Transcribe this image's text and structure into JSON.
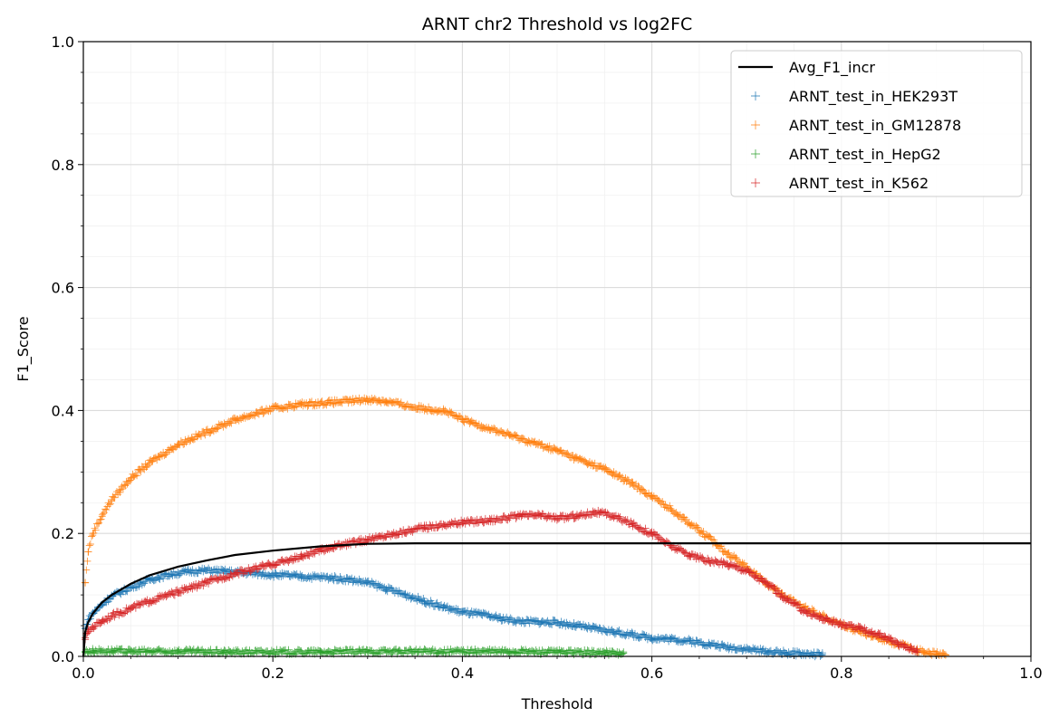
{
  "chart_data": {
    "type": "scatter",
    "title": "ARNT chr2 Threshold vs log2FC",
    "xlabel": "Threshold",
    "ylabel": "F1_Score",
    "xlim": [
      0.0,
      1.0
    ],
    "ylim": [
      0.0,
      1.0
    ],
    "xticks": [
      "0.0",
      "0.2",
      "0.4",
      "0.6",
      "0.8",
      "1.0"
    ],
    "yticks": [
      "0.0",
      "0.2",
      "0.4",
      "0.6",
      "0.8",
      "1.0"
    ],
    "grid": true,
    "minor_grid": true,
    "legend_position": "top-right",
    "series": [
      {
        "name": "Avg_F1_incr",
        "kind": "line",
        "color": "#000000",
        "x": [
          0.0,
          0.002,
          0.005,
          0.01,
          0.02,
          0.03,
          0.05,
          0.07,
          0.1,
          0.13,
          0.16,
          0.2,
          0.25,
          0.3,
          0.35,
          0.4,
          0.5,
          0.6,
          0.8,
          1.0
        ],
        "y": [
          0.0,
          0.04,
          0.055,
          0.07,
          0.088,
          0.1,
          0.118,
          0.132,
          0.146,
          0.156,
          0.165,
          0.172,
          0.179,
          0.183,
          0.184,
          0.184,
          0.184,
          0.184,
          0.184,
          0.184
        ]
      },
      {
        "name": "ARNT_test_in_HEK293T",
        "kind": "scatter",
        "color": "#1f77b4",
        "x": [
          0.002,
          0.005,
          0.01,
          0.02,
          0.03,
          0.05,
          0.07,
          0.09,
          0.11,
          0.13,
          0.15,
          0.17,
          0.2,
          0.23,
          0.26,
          0.28,
          0.3,
          0.32,
          0.34,
          0.36,
          0.38,
          0.4,
          0.42,
          0.44,
          0.46,
          0.48,
          0.5,
          0.52,
          0.54,
          0.56,
          0.58,
          0.6,
          0.62,
          0.64,
          0.66,
          0.68,
          0.7,
          0.72,
          0.74,
          0.76,
          0.78
        ],
        "y": [
          0.045,
          0.06,
          0.07,
          0.085,
          0.098,
          0.112,
          0.125,
          0.133,
          0.138,
          0.14,
          0.138,
          0.136,
          0.133,
          0.13,
          0.128,
          0.125,
          0.12,
          0.11,
          0.1,
          0.09,
          0.08,
          0.072,
          0.068,
          0.062,
          0.057,
          0.056,
          0.055,
          0.05,
          0.045,
          0.04,
          0.035,
          0.03,
          0.028,
          0.025,
          0.02,
          0.015,
          0.012,
          0.008,
          0.006,
          0.004,
          0.003
        ]
      },
      {
        "name": "ARNT_test_in_GM12878",
        "kind": "scatter",
        "color": "#ff7f0e",
        "x": [
          0.002,
          0.005,
          0.01,
          0.02,
          0.03,
          0.05,
          0.07,
          0.1,
          0.13,
          0.16,
          0.2,
          0.23,
          0.26,
          0.28,
          0.3,
          0.32,
          0.35,
          0.38,
          0.4,
          0.42,
          0.45,
          0.48,
          0.5,
          0.52,
          0.55,
          0.58,
          0.6,
          0.62,
          0.65,
          0.68,
          0.7,
          0.72,
          0.74,
          0.76,
          0.78,
          0.8,
          0.82,
          0.84,
          0.86,
          0.88,
          0.9,
          0.91
        ],
        "y": [
          0.12,
          0.17,
          0.2,
          0.23,
          0.255,
          0.29,
          0.315,
          0.345,
          0.365,
          0.385,
          0.403,
          0.41,
          0.413,
          0.415,
          0.418,
          0.415,
          0.405,
          0.4,
          0.385,
          0.375,
          0.36,
          0.345,
          0.335,
          0.322,
          0.305,
          0.28,
          0.26,
          0.24,
          0.205,
          0.168,
          0.145,
          0.12,
          0.098,
          0.08,
          0.066,
          0.052,
          0.04,
          0.03,
          0.02,
          0.01,
          0.004,
          0.002
        ]
      },
      {
        "name": "ARNT_test_in_HepG2",
        "kind": "scatter",
        "color": "#2ca02c",
        "x": [
          0.002,
          0.01,
          0.03,
          0.05,
          0.1,
          0.15,
          0.2,
          0.25,
          0.3,
          0.35,
          0.4,
          0.45,
          0.5,
          0.55,
          0.57
        ],
        "y": [
          0.008,
          0.009,
          0.009,
          0.008,
          0.008,
          0.007,
          0.007,
          0.007,
          0.008,
          0.008,
          0.008,
          0.008,
          0.007,
          0.006,
          0.005
        ]
      },
      {
        "name": "ARNT_test_in_K562",
        "kind": "scatter",
        "color": "#d62728",
        "x": [
          0.002,
          0.005,
          0.01,
          0.02,
          0.03,
          0.05,
          0.07,
          0.1,
          0.13,
          0.16,
          0.2,
          0.23,
          0.26,
          0.3,
          0.33,
          0.36,
          0.4,
          0.43,
          0.46,
          0.48,
          0.5,
          0.52,
          0.54,
          0.56,
          0.58,
          0.6,
          0.62,
          0.64,
          0.66,
          0.68,
          0.7,
          0.72,
          0.74,
          0.76,
          0.78,
          0.8,
          0.82,
          0.84,
          0.86,
          0.88
        ],
        "y": [
          0.03,
          0.04,
          0.048,
          0.058,
          0.066,
          0.078,
          0.09,
          0.105,
          0.12,
          0.135,
          0.15,
          0.162,
          0.177,
          0.19,
          0.2,
          0.21,
          0.218,
          0.222,
          0.228,
          0.23,
          0.225,
          0.228,
          0.235,
          0.228,
          0.215,
          0.2,
          0.18,
          0.165,
          0.155,
          0.15,
          0.14,
          0.12,
          0.095,
          0.075,
          0.062,
          0.052,
          0.045,
          0.035,
          0.02,
          0.01
        ]
      }
    ]
  }
}
